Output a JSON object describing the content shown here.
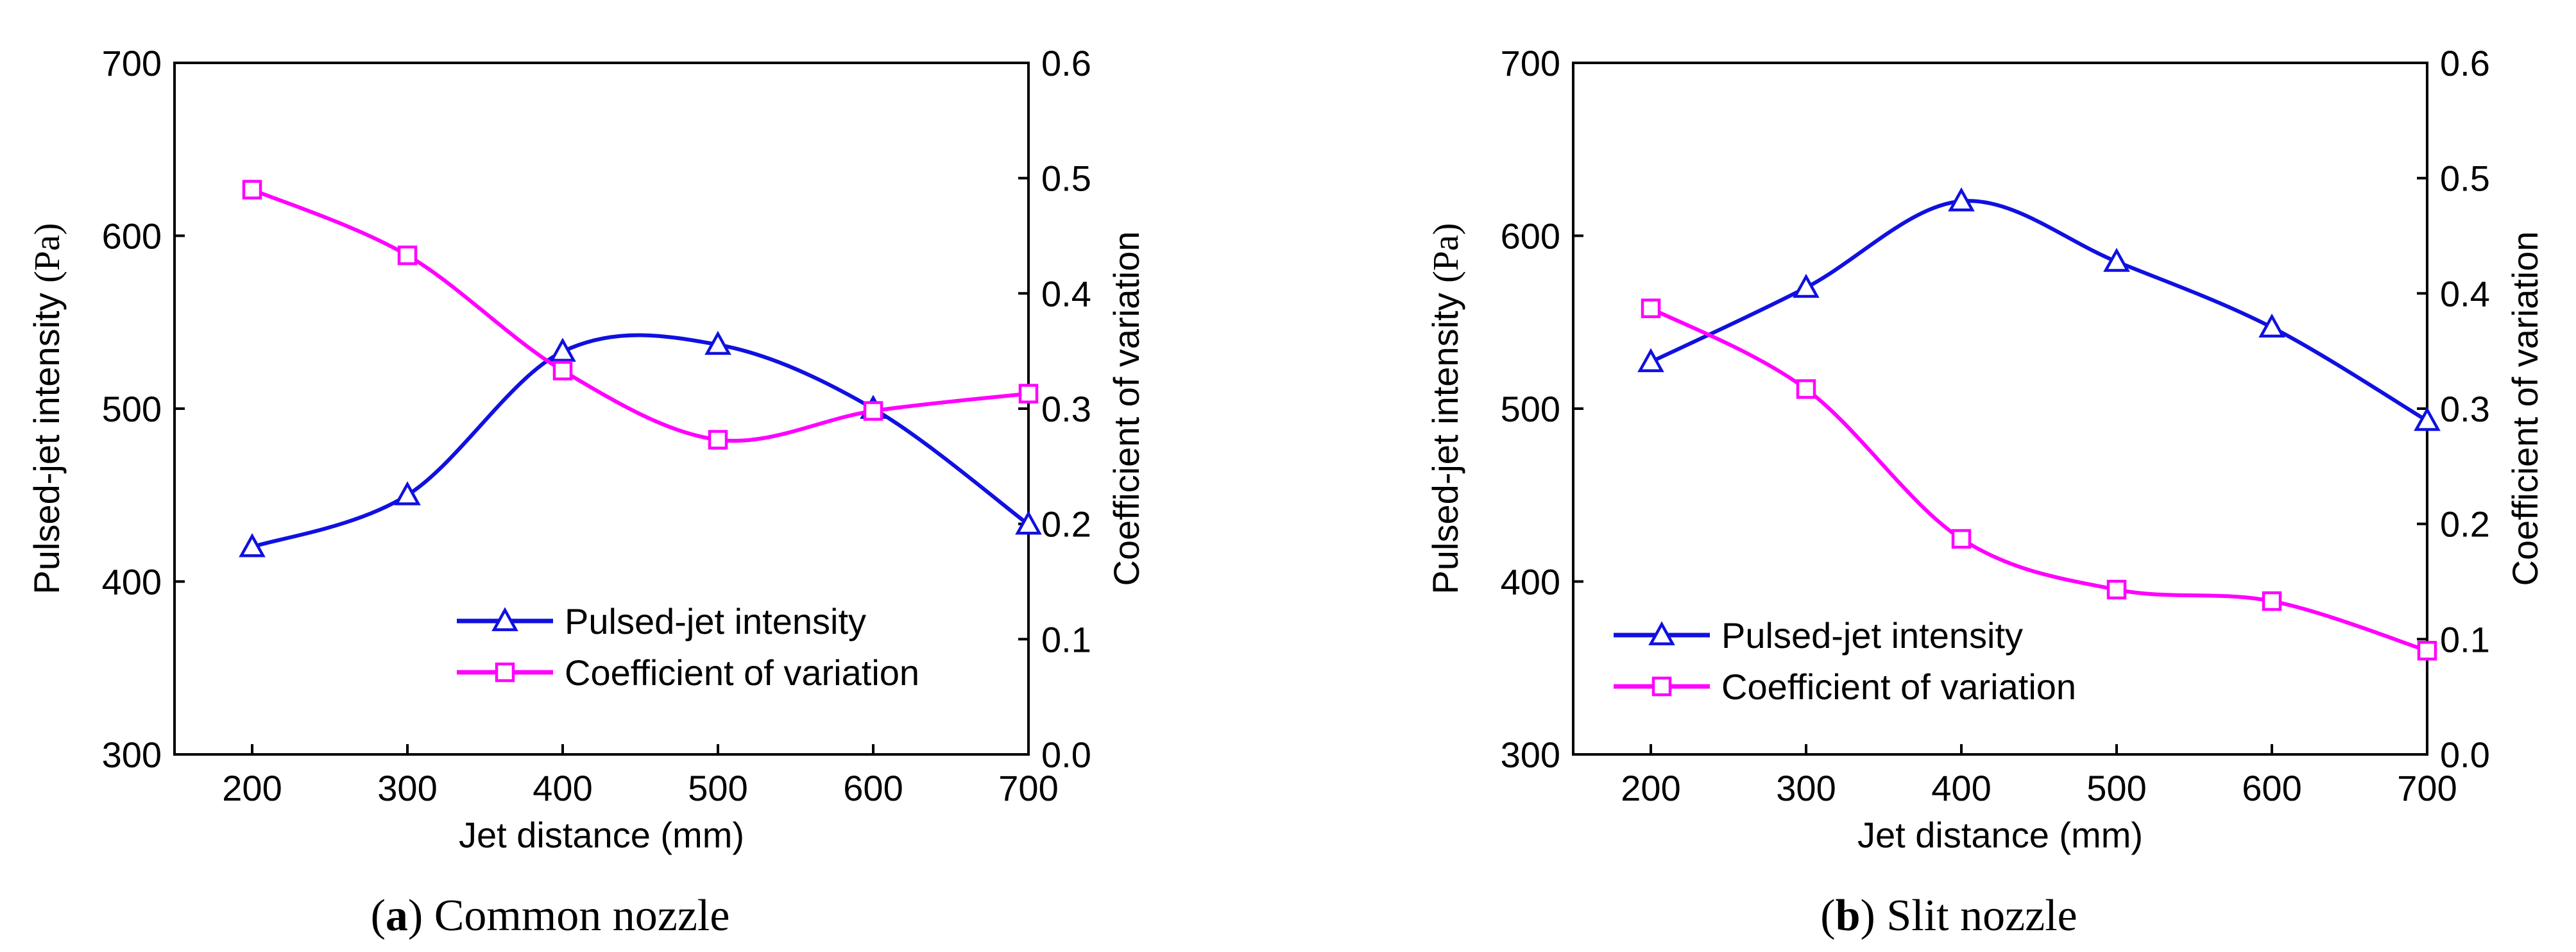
{
  "chart_data": [
    {
      "type": "line",
      "panel_id": "a",
      "caption_letter": "a",
      "caption_text": "Common nozzle",
      "xlabel": "Jet distance (mm)",
      "ylabel_main": "Pulsed-jet intensity ",
      "ylabel_unit": "(Pa)",
      "y2label": "Coefficient of variation",
      "x": [
        200,
        300,
        400,
        500,
        600,
        700
      ],
      "xticks": [
        "200",
        "300",
        "400",
        "500",
        "600",
        "700"
      ],
      "xlim": [
        150,
        700
      ],
      "ylim": [
        300,
        700
      ],
      "yticks": [
        "300",
        "400",
        "500",
        "600",
        "700"
      ],
      "y2lim": [
        0.0,
        0.6
      ],
      "y2ticks": [
        "0.0",
        "0.1",
        "0.2",
        "0.3",
        "0.4",
        "0.5",
        "0.6"
      ],
      "legend_position": "bottom-right",
      "series": [
        {
          "name": "Pulsed-jet intensity",
          "axis": "left",
          "marker": "triangle",
          "color": "#1010e0",
          "values": [
            420,
            450,
            533,
            537,
            500,
            433
          ]
        },
        {
          "name": "Coefficient of variation",
          "axis": "right",
          "marker": "square",
          "color": "#ff00ff",
          "values": [
            0.49,
            0.433,
            0.333,
            0.273,
            0.298,
            0.313
          ]
        }
      ]
    },
    {
      "type": "line",
      "panel_id": "b",
      "caption_letter": "b",
      "caption_text": "Slit nozzle",
      "xlabel": "Jet distance (mm)",
      "ylabel_main": "Pulsed-jet intensity ",
      "ylabel_unit": "(Pa)",
      "y2label": "Coefficient of variation",
      "x": [
        200,
        300,
        400,
        500,
        600,
        700
      ],
      "xticks": [
        "200",
        "300",
        "400",
        "500",
        "600",
        "700"
      ],
      "xlim": [
        150,
        700
      ],
      "ylim": [
        300,
        700
      ],
      "yticks": [
        "300",
        "400",
        "500",
        "600",
        "700"
      ],
      "y2lim": [
        0.0,
        0.6
      ],
      "y2ticks": [
        "0.0",
        "0.1",
        "0.2",
        "0.3",
        "0.4",
        "0.5",
        "0.6"
      ],
      "legend_position": "bottom-left",
      "series": [
        {
          "name": "Pulsed-jet intensity",
          "axis": "left",
          "marker": "triangle",
          "color": "#1010e0",
          "values": [
            527,
            570,
            620,
            585,
            547,
            493
          ]
        },
        {
          "name": "Coefficient of variation",
          "axis": "right",
          "marker": "square",
          "color": "#ff00ff",
          "values": [
            0.387,
            0.317,
            0.187,
            0.143,
            0.133,
            0.09
          ]
        }
      ]
    }
  ]
}
